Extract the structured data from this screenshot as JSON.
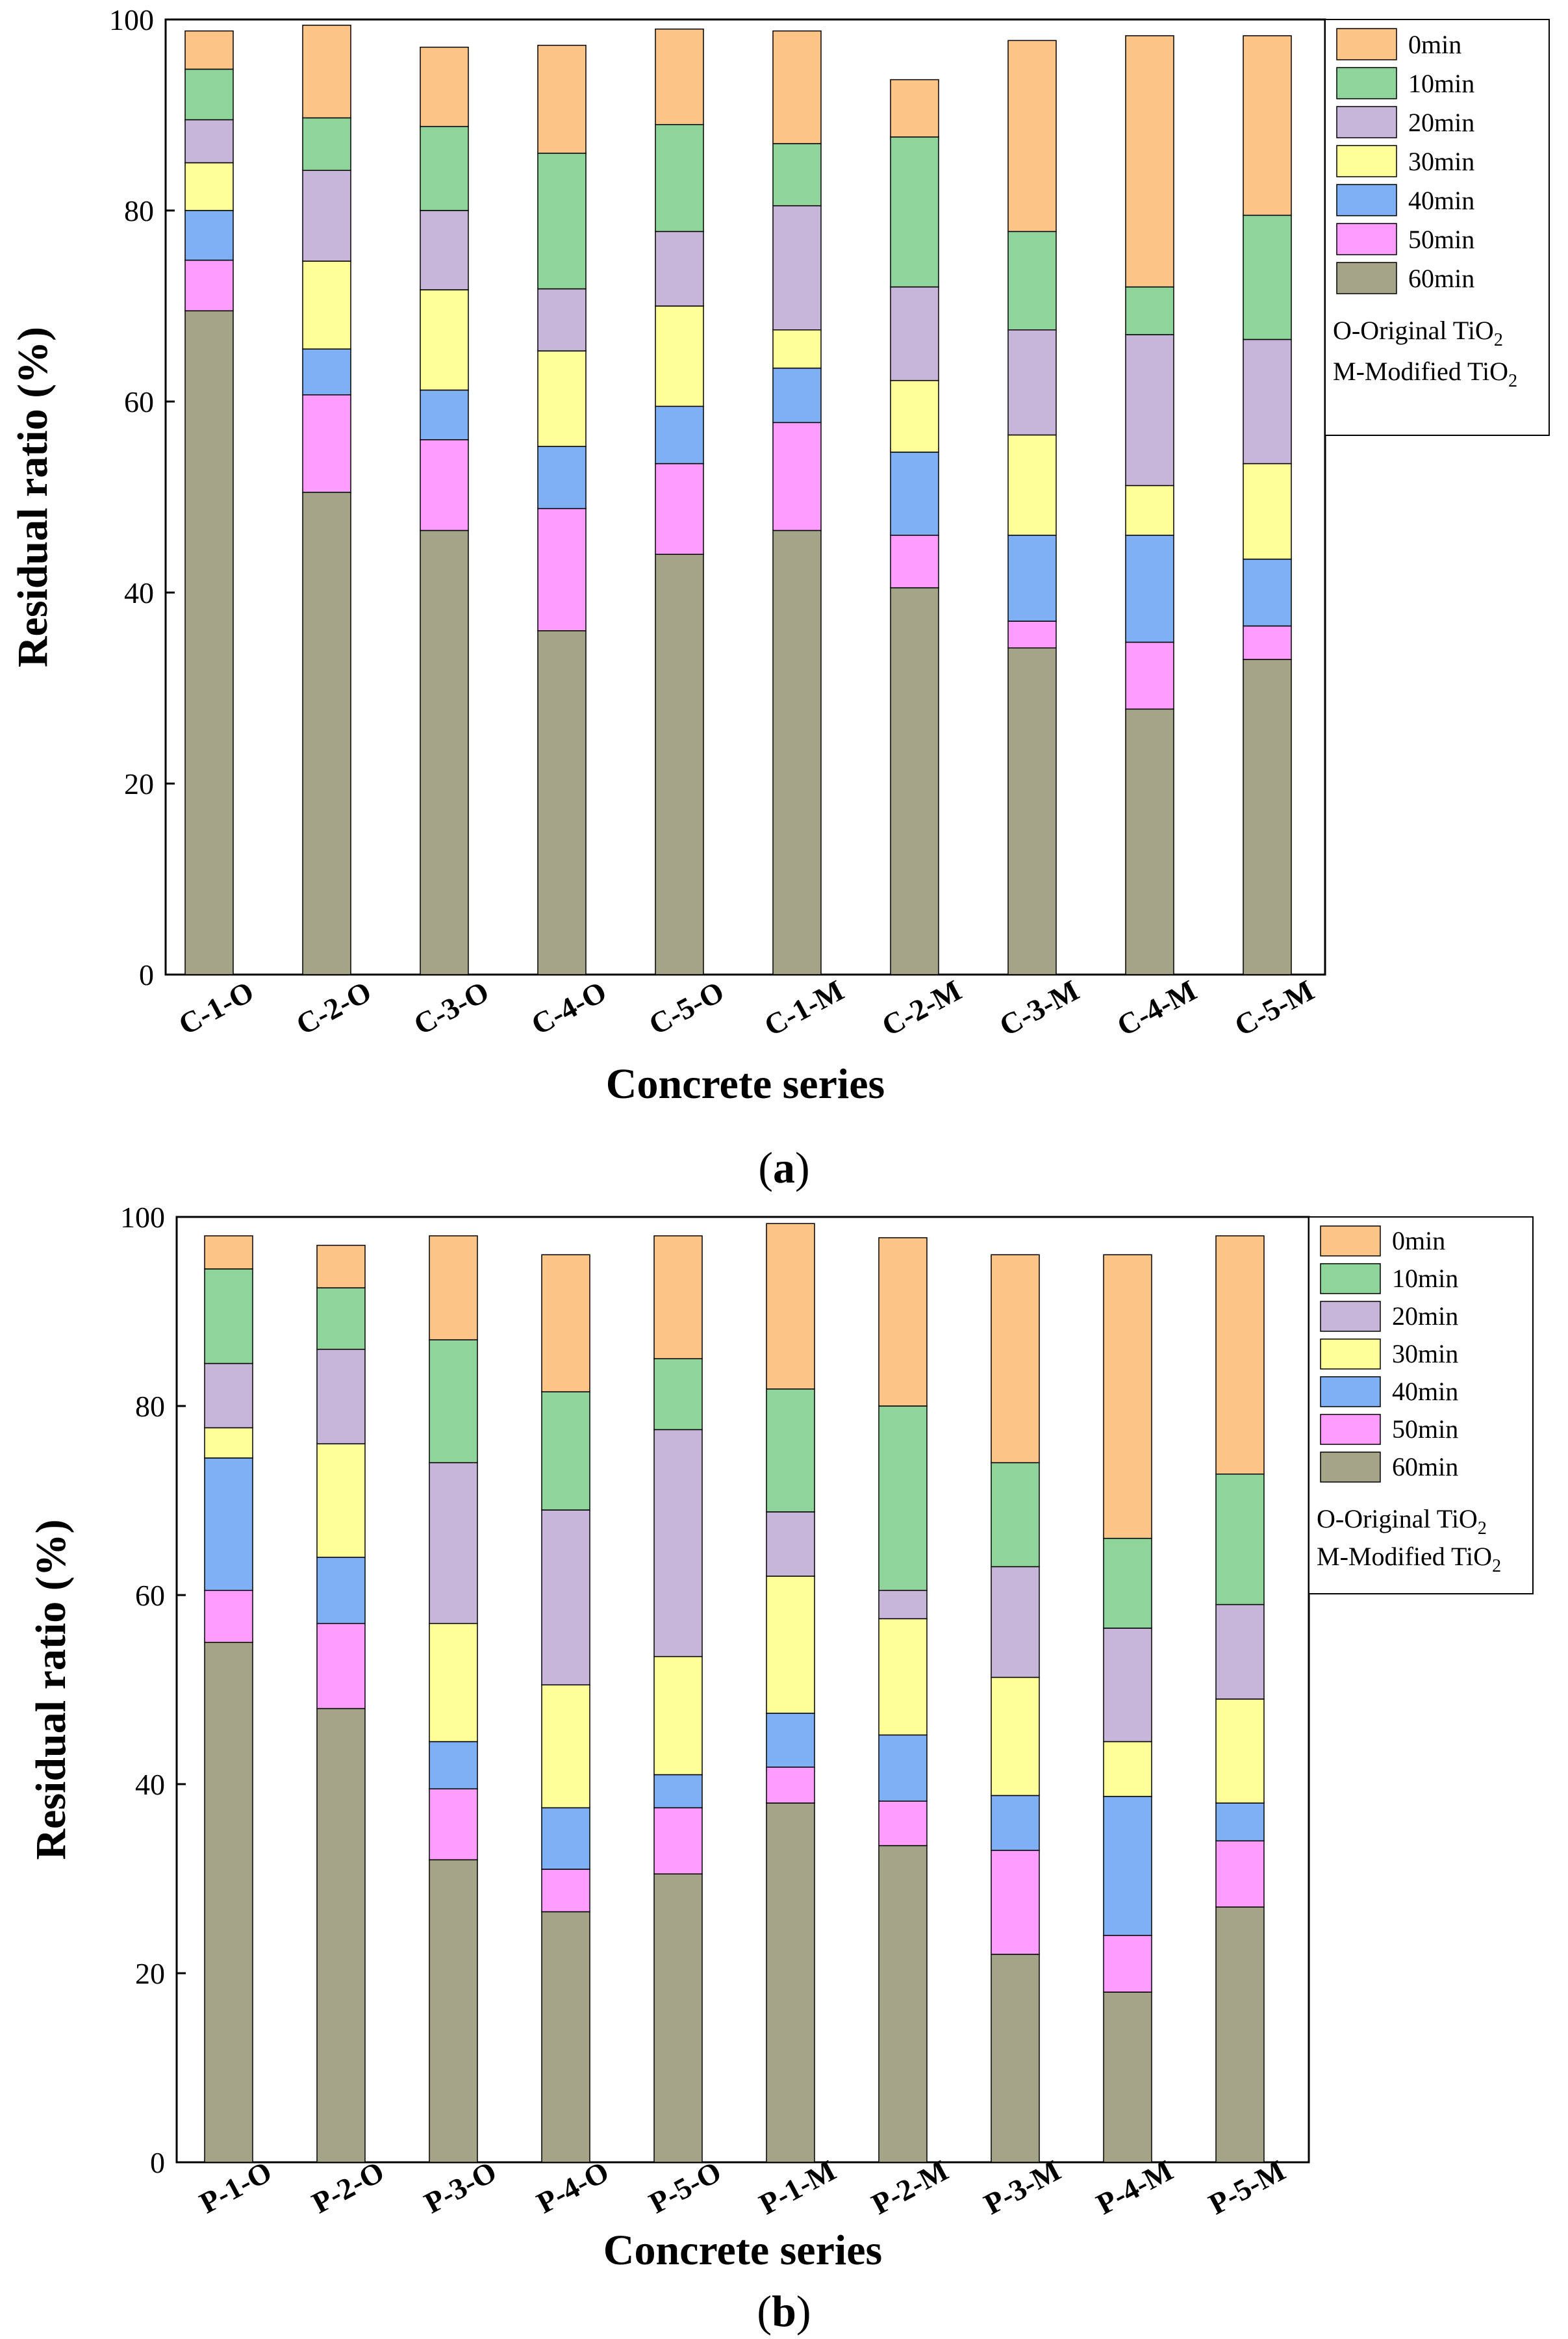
{
  "chart_data": [
    {
      "type": "bar",
      "stacked": true,
      "panel_label": "a",
      "xlabel": "Concrete series",
      "ylabel": "Residual ratio (%)",
      "ylim": [
        0,
        100
      ],
      "yticks": [
        0,
        20,
        40,
        60,
        80,
        100
      ],
      "categories": [
        "C-1-O",
        "C-2-O",
        "C-3-O",
        "C-4-O",
        "C-5-O",
        "C-1-M",
        "C-2-M",
        "C-3-M",
        "C-4-M",
        "C-5-M"
      ],
      "series": [
        {
          "name": "60min",
          "color": "#a4a489",
          "values": [
            69.5,
            50.5,
            46.5,
            36.0,
            44.0,
            46.5,
            40.5,
            34.2,
            27.8,
            33.0
          ]
        },
        {
          "name": "50min",
          "color": "#ff9dff",
          "values": [
            5.3,
            10.2,
            9.5,
            12.8,
            9.5,
            11.3,
            5.5,
            2.8,
            7.0,
            3.5
          ]
        },
        {
          "name": "40min",
          "color": "#7fb0f5",
          "values": [
            5.2,
            4.8,
            5.2,
            6.5,
            6.0,
            5.7,
            8.7,
            9.0,
            11.2,
            7.0
          ]
        },
        {
          "name": "30min",
          "color": "#ffff99",
          "values": [
            5.0,
            9.2,
            10.5,
            10.0,
            10.5,
            4.0,
            7.5,
            10.5,
            5.2,
            10.0
          ]
        },
        {
          "name": "20min",
          "color": "#c8b6da",
          "values": [
            4.5,
            9.5,
            8.3,
            6.5,
            7.8,
            13.0,
            9.8,
            11.0,
            15.8,
            13.0
          ]
        },
        {
          "name": "10min",
          "color": "#8fd49a",
          "values": [
            5.3,
            5.5,
            8.8,
            14.2,
            11.2,
            6.5,
            15.7,
            10.3,
            5.0,
            13.0
          ]
        },
        {
          "name": "0min",
          "color": "#fcc587",
          "values": [
            4.0,
            9.7,
            8.3,
            11.3,
            10.0,
            11.8,
            6.0,
            20.0,
            26.3,
            18.8
          ]
        }
      ],
      "legend_extra": [
        "O-Original TiO",
        "M-Modified TiO"
      ],
      "legend_subscript": "2"
    },
    {
      "type": "bar",
      "stacked": true,
      "panel_label": "b",
      "xlabel": "Concrete series",
      "ylabel": "Residual ratio (%)",
      "ylim": [
        0,
        100
      ],
      "yticks": [
        0,
        20,
        40,
        60,
        80,
        100
      ],
      "categories": [
        "P-1-O",
        "P-2-O",
        "P-3-O",
        "P-4-O",
        "P-5-O",
        "P-1-M",
        "P-2-M",
        "P-3-M",
        "P-4-M",
        "P-5-M"
      ],
      "series": [
        {
          "name": "60min",
          "color": "#a4a489",
          "values": [
            55.0,
            48.0,
            32.0,
            26.5,
            30.5,
            38.0,
            33.5,
            22.0,
            18.0,
            27.0
          ]
        },
        {
          "name": "50min",
          "color": "#ff9dff",
          "values": [
            5.5,
            9.0,
            7.5,
            4.5,
            7.0,
            3.8,
            4.7,
            11.0,
            6.0,
            7.0
          ]
        },
        {
          "name": "40min",
          "color": "#7fb0f5",
          "values": [
            14.0,
            7.0,
            5.0,
            6.5,
            3.5,
            5.7,
            7.0,
            5.8,
            14.7,
            4.0
          ]
        },
        {
          "name": "30min",
          "color": "#ffff99",
          "values": [
            3.2,
            12.0,
            12.5,
            13.0,
            12.5,
            14.5,
            12.3,
            12.5,
            5.8,
            11.0
          ]
        },
        {
          "name": "20min",
          "color": "#c8b6da",
          "values": [
            6.8,
            10.0,
            17.0,
            18.5,
            24.0,
            6.8,
            3.0,
            11.7,
            12.0,
            10.0
          ]
        },
        {
          "name": "10min",
          "color": "#8fd49a",
          "values": [
            10.0,
            6.5,
            13.0,
            12.5,
            7.5,
            13.0,
            19.5,
            11.0,
            9.5,
            13.8
          ]
        },
        {
          "name": "0min",
          "color": "#fcc587",
          "values": [
            3.5,
            4.5,
            11.0,
            14.5,
            13.0,
            17.5,
            17.8,
            22.0,
            30.0,
            25.2
          ]
        }
      ],
      "legend_extra": [
        "O-Original TiO",
        "M-Modified TiO"
      ],
      "legend_subscript": "2"
    }
  ]
}
